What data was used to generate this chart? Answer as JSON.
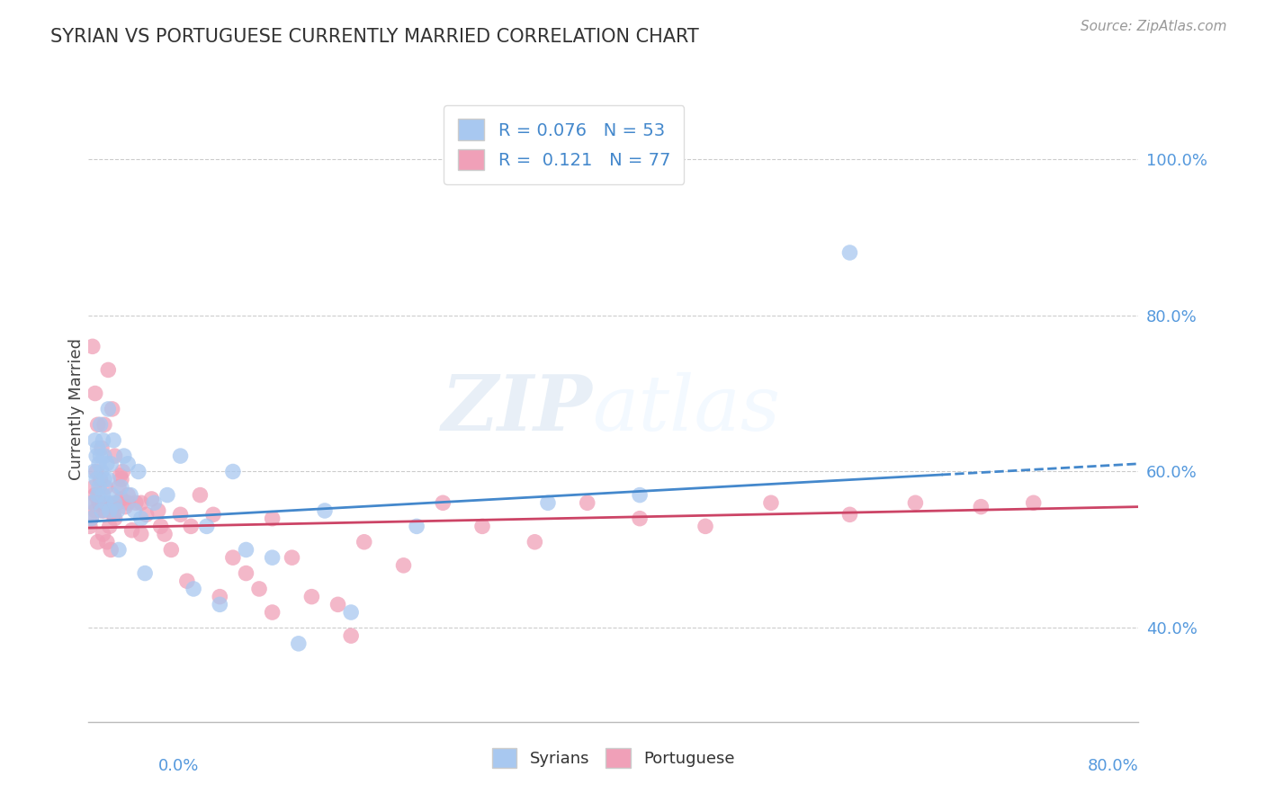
{
  "title": "SYRIAN VS PORTUGUESE CURRENTLY MARRIED CORRELATION CHART",
  "source": "Source: ZipAtlas.com",
  "ylabel": "Currently Married",
  "y_ticks": [
    0.4,
    0.6,
    0.8,
    1.0
  ],
  "y_tick_labels": [
    "40.0%",
    "60.0%",
    "80.0%",
    "100.0%"
  ],
  "x_range": [
    0.0,
    0.8
  ],
  "y_range": [
    0.28,
    1.08
  ],
  "legend_r1": "R = 0.076   N = 53",
  "legend_r2": "R =  0.121   N = 77",
  "syrian_color": "#A8C8F0",
  "portuguese_color": "#F0A0B8",
  "syrian_line_color": "#4488CC",
  "portuguese_line_color": "#CC4466",
  "watermark_zip": "ZIP",
  "watermark_atlas": "atlas",
  "syrians_x": [
    0.002,
    0.003,
    0.004,
    0.005,
    0.006,
    0.006,
    0.007,
    0.007,
    0.008,
    0.008,
    0.009,
    0.009,
    0.01,
    0.01,
    0.011,
    0.011,
    0.012,
    0.012,
    0.013,
    0.014,
    0.015,
    0.015,
    0.016,
    0.017,
    0.018,
    0.019,
    0.02,
    0.022,
    0.023,
    0.025,
    0.027,
    0.03,
    0.032,
    0.035,
    0.038,
    0.04,
    0.043,
    0.05,
    0.06,
    0.07,
    0.08,
    0.09,
    0.1,
    0.11,
    0.12,
    0.14,
    0.16,
    0.18,
    0.2,
    0.25,
    0.35,
    0.42,
    0.58
  ],
  "syrians_y": [
    0.54,
    0.56,
    0.6,
    0.64,
    0.59,
    0.62,
    0.63,
    0.57,
    0.61,
    0.58,
    0.66,
    0.62,
    0.55,
    0.6,
    0.64,
    0.57,
    0.59,
    0.62,
    0.56,
    0.61,
    0.68,
    0.59,
    0.55,
    0.61,
    0.57,
    0.64,
    0.56,
    0.55,
    0.5,
    0.58,
    0.62,
    0.61,
    0.57,
    0.55,
    0.6,
    0.54,
    0.47,
    0.56,
    0.57,
    0.62,
    0.45,
    0.53,
    0.43,
    0.6,
    0.5,
    0.49,
    0.38,
    0.55,
    0.42,
    0.53,
    0.56,
    0.57,
    0.88
  ],
  "portuguese_x": [
    0.001,
    0.002,
    0.003,
    0.004,
    0.005,
    0.005,
    0.006,
    0.007,
    0.008,
    0.009,
    0.01,
    0.011,
    0.012,
    0.013,
    0.014,
    0.015,
    0.016,
    0.017,
    0.018,
    0.019,
    0.02,
    0.022,
    0.023,
    0.024,
    0.025,
    0.026,
    0.028,
    0.03,
    0.033,
    0.036,
    0.04,
    0.044,
    0.048,
    0.053,
    0.058,
    0.063,
    0.07,
    0.078,
    0.085,
    0.095,
    0.11,
    0.12,
    0.13,
    0.14,
    0.155,
    0.17,
    0.19,
    0.21,
    0.24,
    0.27,
    0.3,
    0.34,
    0.38,
    0.42,
    0.47,
    0.52,
    0.58,
    0.63,
    0.68,
    0.72,
    0.003,
    0.005,
    0.007,
    0.008,
    0.01,
    0.012,
    0.015,
    0.018,
    0.02,
    0.025,
    0.03,
    0.04,
    0.055,
    0.075,
    0.1,
    0.14,
    0.2
  ],
  "portuguese_y": [
    0.53,
    0.54,
    0.56,
    0.58,
    0.55,
    0.57,
    0.6,
    0.51,
    0.56,
    0.59,
    0.55,
    0.52,
    0.55,
    0.58,
    0.51,
    0.56,
    0.53,
    0.5,
    0.555,
    0.545,
    0.54,
    0.56,
    0.58,
    0.595,
    0.565,
    0.6,
    0.555,
    0.57,
    0.525,
    0.56,
    0.52,
    0.545,
    0.565,
    0.55,
    0.52,
    0.5,
    0.545,
    0.53,
    0.57,
    0.545,
    0.49,
    0.47,
    0.45,
    0.54,
    0.49,
    0.44,
    0.43,
    0.51,
    0.48,
    0.56,
    0.53,
    0.51,
    0.56,
    0.54,
    0.53,
    0.56,
    0.545,
    0.56,
    0.555,
    0.56,
    0.76,
    0.7,
    0.66,
    0.56,
    0.63,
    0.66,
    0.73,
    0.68,
    0.62,
    0.59,
    0.56,
    0.56,
    0.53,
    0.46,
    0.44,
    0.42,
    0.39
  ]
}
